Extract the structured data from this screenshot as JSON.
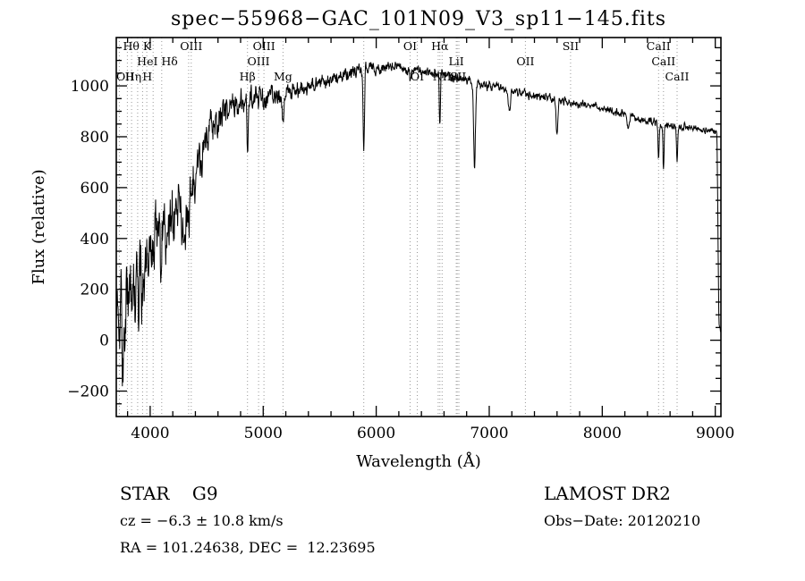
{
  "chart_data": {
    "type": "line",
    "title": "spec−55968−GAC_101N09_V3_sp11−145.fits",
    "xlabel": "Wavelength (Å)",
    "ylabel": "Flux (relative)",
    "xlim": [
      3700,
      9050
    ],
    "ylim": [
      -300,
      1190
    ],
    "xticks": [
      4000,
      5000,
      6000,
      7000,
      8000,
      9000
    ],
    "x_minor_step": 200,
    "yticks": [
      -200,
      0,
      200,
      400,
      600,
      800,
      1000
    ],
    "y_minor_step": 50,
    "line_color": "#000000",
    "guide_color": "#999999",
    "background": "#ffffff",
    "grid": false,
    "legend": false,
    "spectrum": {
      "continuum": [
        [
          3700,
          30
        ],
        [
          3715,
          180
        ],
        [
          3730,
          -60
        ],
        [
          3745,
          120
        ],
        [
          3760,
          -180
        ],
        [
          3775,
          60
        ],
        [
          3790,
          240
        ],
        [
          3805,
          90
        ],
        [
          3820,
          280
        ],
        [
          3835,
          150
        ],
        [
          3850,
          320
        ],
        [
          3865,
          200
        ],
        [
          3880,
          380
        ],
        [
          3895,
          160
        ],
        [
          3910,
          300
        ],
        [
          3925,
          230
        ],
        [
          3940,
          350
        ],
        [
          3955,
          280
        ],
        [
          3970,
          390
        ],
        [
          3985,
          310
        ],
        [
          4000,
          420
        ],
        [
          4030,
          370
        ],
        [
          4060,
          450
        ],
        [
          4090,
          400
        ],
        [
          4120,
          490
        ],
        [
          4150,
          430
        ],
        [
          4180,
          520
        ],
        [
          4210,
          470
        ],
        [
          4240,
          560
        ],
        [
          4270,
          500
        ],
        [
          4300,
          430
        ],
        [
          4330,
          520
        ],
        [
          4360,
          580
        ],
        [
          4400,
          640
        ],
        [
          4440,
          700
        ],
        [
          4480,
          760
        ],
        [
          4520,
          810
        ],
        [
          4560,
          850
        ],
        [
          4600,
          870
        ],
        [
          4650,
          890
        ],
        [
          4700,
          905
        ],
        [
          4750,
          915
        ],
        [
          4800,
          925
        ],
        [
          4850,
          930
        ],
        [
          4900,
          945
        ],
        [
          4950,
          950
        ],
        [
          5000,
          955
        ],
        [
          5100,
          965
        ],
        [
          5200,
          975
        ],
        [
          5300,
          985
        ],
        [
          5400,
          995
        ],
        [
          5500,
          1010
        ],
        [
          5600,
          1025
        ],
        [
          5700,
          1040
        ],
        [
          5800,
          1055
        ],
        [
          5900,
          1060
        ],
        [
          6000,
          1070
        ],
        [
          6100,
          1072
        ],
        [
          6200,
          1068
        ],
        [
          6300,
          1065
        ],
        [
          6400,
          1058
        ],
        [
          6500,
          1050
        ],
        [
          6600,
          1042
        ],
        [
          6700,
          1032
        ],
        [
          6800,
          1022
        ],
        [
          6900,
          1012
        ],
        [
          7000,
          1002
        ],
        [
          7100,
          992
        ],
        [
          7200,
          982
        ],
        [
          7300,
          972
        ],
        [
          7400,
          962
        ],
        [
          7500,
          952
        ],
        [
          7600,
          945
        ],
        [
          7700,
          938
        ],
        [
          7800,
          930
        ],
        [
          7900,
          922
        ],
        [
          8000,
          912
        ],
        [
          8100,
          900
        ],
        [
          8200,
          888
        ],
        [
          8300,
          875
        ],
        [
          8400,
          862
        ],
        [
          8500,
          852
        ],
        [
          8600,
          845
        ],
        [
          8700,
          838
        ],
        [
          8800,
          832
        ],
        [
          8900,
          828
        ],
        [
          9000,
          822
        ],
        [
          9015,
          818
        ],
        [
          9025,
          400
        ],
        [
          9032,
          60
        ],
        [
          9046,
          35
        ]
      ],
      "noise_amplitude": [
        [
          3700,
          150
        ],
        [
          3900,
          140
        ],
        [
          4000,
          130
        ],
        [
          4100,
          120
        ],
        [
          4200,
          110
        ],
        [
          4300,
          95
        ],
        [
          4400,
          85
        ],
        [
          4500,
          70
        ],
        [
          4600,
          60
        ],
        [
          4800,
          50
        ],
        [
          5000,
          40
        ],
        [
          5200,
          34
        ],
        [
          5400,
          30
        ],
        [
          5600,
          27
        ],
        [
          5800,
          25
        ],
        [
          6000,
          23
        ],
        [
          6300,
          21
        ],
        [
          6600,
          19
        ],
        [
          7000,
          18
        ],
        [
          7500,
          16
        ],
        [
          8000,
          15
        ],
        [
          8500,
          14
        ],
        [
          9000,
          12
        ]
      ],
      "absorption_lines": [
        [
          3933,
          120,
          10
        ],
        [
          3970,
          90,
          9
        ],
        [
          4101,
          85,
          8
        ],
        [
          4300,
          110,
          9
        ],
        [
          4340,
          70,
          7
        ],
        [
          4861,
          200,
          5
        ],
        [
          5175,
          110,
          10
        ],
        [
          5890,
          340,
          6
        ],
        [
          6300,
          45,
          6
        ],
        [
          6563,
          190,
          5
        ],
        [
          6870,
          330,
          8
        ],
        [
          7180,
          70,
          10
        ],
        [
          7600,
          140,
          8
        ],
        [
          8230,
          50,
          9
        ],
        [
          8498,
          130,
          5
        ],
        [
          8542,
          180,
          5
        ],
        [
          8662,
          140,
          5
        ]
      ]
    },
    "spectral_lines": {
      "dotted": [
        3727,
        3798,
        3835,
        3889,
        3933,
        3970,
        4026,
        4102,
        4340,
        4363,
        4861,
        4959,
        5007,
        5175,
        5890,
        6300,
        6363,
        6548,
        6563,
        6583,
        6708,
        6717,
        6731,
        7320,
        7720,
        8498,
        8542,
        8662
      ],
      "labels": [
        {
          "text": "Hθ K",
          "wl": 3885,
          "row": 1
        },
        {
          "text": "OIII",
          "wl": 4363,
          "row": 1
        },
        {
          "text": "OIII",
          "wl": 5007,
          "row": 1
        },
        {
          "text": "OI",
          "wl": 6300,
          "row": 1
        },
        {
          "text": "Hα",
          "wl": 6563,
          "row": 1
        },
        {
          "text": "SII",
          "wl": 7720,
          "row": 1
        },
        {
          "text": "CaII",
          "wl": 8498,
          "row": 1
        },
        {
          "text": "HeI Hδ",
          "wl": 4064,
          "row": 2
        },
        {
          "text": "OIII",
          "wl": 4959,
          "row": 2
        },
        {
          "text": "LiI",
          "wl": 6708,
          "row": 2
        },
        {
          "text": "OII",
          "wl": 7320,
          "row": 2
        },
        {
          "text": "CaII",
          "wl": 8542,
          "row": 2
        },
        {
          "text": "OII",
          "wl": 3727,
          "row": 3
        },
        {
          "text": "Hη",
          "wl": 3850,
          "row": 3
        },
        {
          "text": "H",
          "wl": 3975,
          "row": 3
        },
        {
          "text": "Hβ",
          "wl": 4861,
          "row": 3
        },
        {
          "text": "Mg",
          "wl": 5175,
          "row": 3
        },
        {
          "text": "OI",
          "wl": 6363,
          "row": 3
        },
        {
          "text": "NII",
          "wl": 6583,
          "row": 3
        },
        {
          "text": "SII",
          "wl": 6724,
          "row": 3
        },
        {
          "text": "CaII",
          "wl": 8662,
          "row": 3
        }
      ]
    }
  },
  "footer": {
    "class_label": "STAR    G9",
    "survey": "LAMOST DR2",
    "cz": "cz = −6.3 ± 10.8 km/s",
    "obs_date": "Obs−Date: 20120210",
    "coords": "RA = 101.24638, DEC =  12.23695"
  }
}
